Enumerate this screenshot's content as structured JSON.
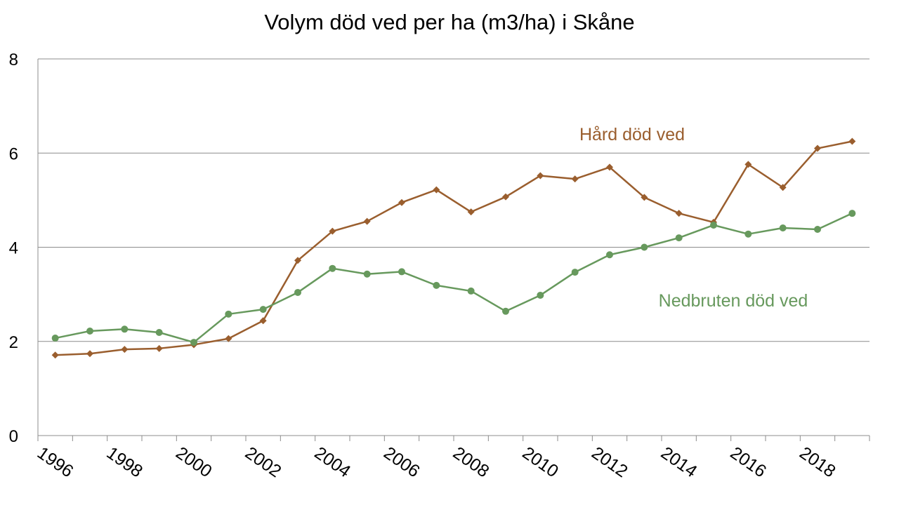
{
  "chart_data": {
    "type": "line",
    "title": "Volym död ved per ha (m3/ha) i Skåne",
    "xlabel": "",
    "ylabel": "",
    "x": [
      1996,
      1997,
      1998,
      1999,
      2000,
      2001,
      2002,
      2003,
      2004,
      2005,
      2006,
      2007,
      2008,
      2009,
      2010,
      2011,
      2012,
      2013,
      2014,
      2015,
      2016,
      2017,
      2018,
      2019
    ],
    "x_tick_labels": [
      "1996",
      "1998",
      "2000",
      "2002",
      "2004",
      "2006",
      "2008",
      "2010",
      "2012",
      "2014",
      "2016",
      "2018"
    ],
    "ylim": [
      0,
      8
    ],
    "y_ticks": [
      "0",
      "2",
      "4",
      "6",
      "8"
    ],
    "grid": true,
    "series": [
      {
        "name": "Hård död ved",
        "color": "#9A5E2E",
        "marker": "diamond",
        "values": [
          1.71,
          1.74,
          1.83,
          1.85,
          1.93,
          2.06,
          2.44,
          3.72,
          4.34,
          4.55,
          4.95,
          5.22,
          4.75,
          5.07,
          5.52,
          5.45,
          5.7,
          5.06,
          4.72,
          4.53,
          5.76,
          5.27,
          6.1,
          6.25
        ]
      },
      {
        "name": "Nedbruten död ved",
        "color": "#67995D",
        "marker": "circle",
        "values": [
          2.07,
          2.22,
          2.26,
          2.19,
          1.98,
          2.58,
          2.68,
          3.04,
          3.55,
          3.43,
          3.48,
          3.19,
          3.07,
          2.64,
          2.98,
          3.47,
          3.84,
          4.0,
          4.2,
          4.47,
          4.28,
          4.41,
          4.38,
          4.72
        ]
      }
    ]
  }
}
